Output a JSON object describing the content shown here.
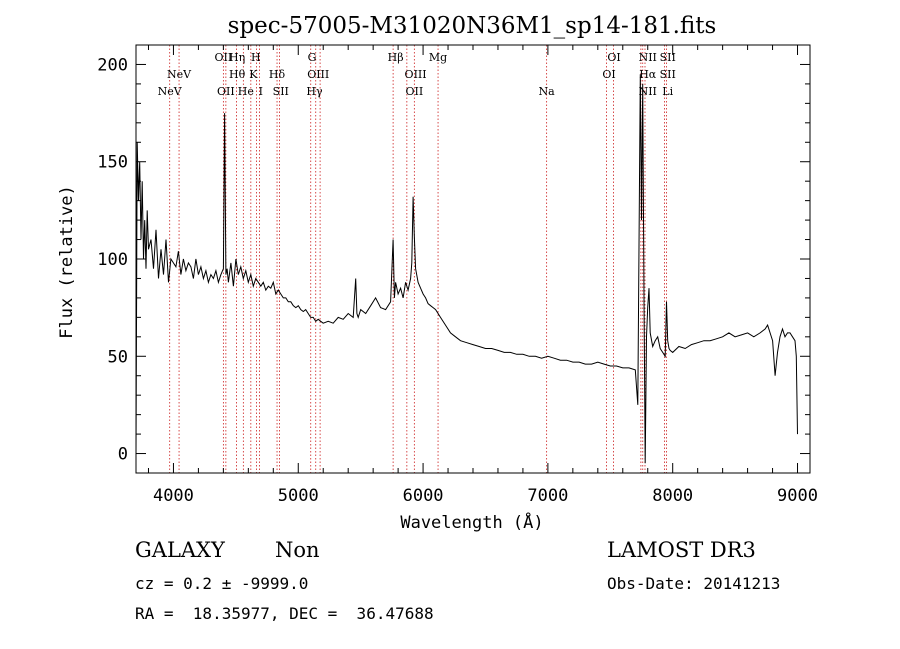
{
  "chart_data": {
    "type": "line",
    "title": "spec-57005-M31020N36M1_sp14-181.fits",
    "xlabel": "Wavelength (Å)",
    "ylabel": "Flux (relative)",
    "xlim": [
      3700,
      9100
    ],
    "ylim": [
      -10,
      210
    ],
    "xticks": [
      4000,
      5000,
      6000,
      7000,
      8000,
      9000
    ],
    "yticks": [
      0,
      50,
      100,
      150,
      200
    ],
    "grid": false,
    "series": [
      {
        "x": [
          3700,
          3710,
          3720,
          3730,
          3740,
          3750,
          3760,
          3770,
          3780,
          3790,
          3800,
          3820,
          3840,
          3860,
          3880,
          3900,
          3920,
          3940,
          3960,
          3980,
          4000,
          4020,
          4040,
          4060,
          4080,
          4100,
          4120,
          4140,
          4160,
          4180,
          4200,
          4220,
          4240,
          4260,
          4280,
          4300,
          4320,
          4340,
          4360,
          4380,
          4400,
          4410,
          4420,
          4430,
          4440,
          4460,
          4480,
          4500,
          4520,
          4540,
          4560,
          4580,
          4600,
          4620,
          4640,
          4660,
          4680,
          4700,
          4720,
          4740,
          4760,
          4780,
          4800,
          4820,
          4840,
          4860,
          4880,
          4900,
          4920,
          4940,
          4960,
          4980,
          5000,
          5020,
          5040,
          5060,
          5080,
          5100,
          5120,
          5140,
          5160,
          5180,
          5200,
          5240,
          5280,
          5320,
          5360,
          5400,
          5440,
          5460,
          5470,
          5480,
          5500,
          5540,
          5580,
          5620,
          5660,
          5700,
          5740,
          5760,
          5770,
          5780,
          5800,
          5820,
          5840,
          5860,
          5880,
          5900,
          5910,
          5920,
          5930,
          5940,
          5960,
          5980,
          6000,
          6020,
          6040,
          6060,
          6080,
          6100,
          6140,
          6180,
          6220,
          6260,
          6300,
          6350,
          6400,
          6450,
          6500,
          6550,
          6600,
          6650,
          6700,
          6750,
          6800,
          6850,
          6900,
          6950,
          7000,
          7050,
          7100,
          7150,
          7200,
          7250,
          7300,
          7350,
          7400,
          7450,
          7500,
          7550,
          7600,
          7650,
          7700,
          7720,
          7740,
          7750,
          7760,
          7770,
          7780,
          7790,
          7800,
          7810,
          7820,
          7840,
          7860,
          7880,
          7900,
          7920,
          7940,
          7950,
          7960,
          7970,
          7980,
          8000,
          8050,
          8100,
          8150,
          8200,
          8250,
          8300,
          8350,
          8400,
          8450,
          8500,
          8550,
          8600,
          8650,
          8700,
          8740,
          8760,
          8780,
          8800,
          8820,
          8840,
          8860,
          8880,
          8900,
          8920,
          8940,
          8960,
          8980,
          8990,
          9000
        ],
        "y": [
          0,
          160,
          130,
          150,
          110,
          140,
          100,
          120,
          95,
          125,
          105,
          110,
          95,
          115,
          90,
          105,
          92,
          110,
          88,
          100,
          98,
          96,
          104,
          92,
          100,
          94,
          98,
          96,
          90,
          100,
          92,
          96,
          90,
          94,
          88,
          92,
          90,
          94,
          88,
          92,
          95,
          175,
          92,
          95,
          88,
          98,
          86,
          100,
          92,
          96,
          90,
          94,
          88,
          92,
          86,
          90,
          88,
          86,
          88,
          84,
          86,
          85,
          88,
          82,
          84,
          82,
          80,
          80,
          78,
          78,
          76,
          75,
          76,
          74,
          73,
          74,
          72,
          70,
          70,
          68,
          69,
          68,
          67,
          68,
          67,
          70,
          69,
          72,
          70,
          90,
          72,
          70,
          74,
          72,
          76,
          80,
          75,
          74,
          78,
          110,
          80,
          88,
          82,
          85,
          80,
          88,
          84,
          90,
          98,
          132,
          112,
          95,
          88,
          85,
          82,
          80,
          77,
          76,
          75,
          74,
          70,
          66,
          62,
          60,
          58,
          57,
          56,
          55,
          54,
          54,
          53,
          52,
          52,
          51,
          51,
          50,
          50,
          49,
          50,
          49,
          48,
          48,
          47,
          47,
          46,
          46,
          47,
          46,
          45,
          45,
          44,
          44,
          43,
          25,
          195,
          120,
          190,
          80,
          -5,
          60,
          75,
          85,
          62,
          55,
          58,
          60,
          54,
          52,
          50,
          78,
          58,
          54,
          53,
          52,
          55,
          54,
          56,
          57,
          58,
          58,
          59,
          60,
          62,
          60,
          61,
          62,
          60,
          62,
          64,
          66,
          62,
          58,
          40,
          52,
          60,
          64,
          60,
          62,
          62,
          60,
          58,
          50,
          10
        ]
      }
    ],
    "line_markers": [
      {
        "label": "NeV",
        "x": 3970,
        "row": 3
      },
      {
        "label": "NeV",
        "x": 4045,
        "row": 2
      },
      {
        "label": "OII",
        "x": 4400,
        "row": 1
      },
      {
        "label": "OII",
        "x": 4420,
        "row": 3
      },
      {
        "label": "Hη",
        "x": 4510,
        "row": 1
      },
      {
        "label": "Hθ",
        "x": 4510,
        "row": 2
      },
      {
        "label": "He",
        "x": 4580,
        "row": 3
      },
      {
        "label": "H",
        "x": 4660,
        "row": 1
      },
      {
        "label": "K",
        "x": 4640,
        "row": 2
      },
      {
        "label": "I",
        "x": 4700,
        "row": 3
      },
      {
        "label": "Hδ",
        "x": 4830,
        "row": 2
      },
      {
        "label": "SII",
        "x": 4860,
        "row": 3
      },
      {
        "label": "G",
        "x": 5110,
        "row": 1
      },
      {
        "label": "OIII",
        "x": 5160,
        "row": 2
      },
      {
        "label": "Hγ",
        "x": 5130,
        "row": 3
      },
      {
        "label": "Hβ",
        "x": 5780,
        "row": 1
      },
      {
        "label": "OIII",
        "x": 5940,
        "row": 2
      },
      {
        "label": "OII",
        "x": 5930,
        "row": 3
      },
      {
        "label": "Mg",
        "x": 6120,
        "row": 1
      },
      {
        "label": "Na",
        "x": 6990,
        "row": 3
      },
      {
        "label": "OI",
        "x": 7530,
        "row": 1
      },
      {
        "label": "OI",
        "x": 7490,
        "row": 2
      },
      {
        "label": "NII",
        "x": 7800,
        "row": 1
      },
      {
        "label": "Hα",
        "x": 7800,
        "row": 2
      },
      {
        "label": "NII",
        "x": 7800,
        "row": 3
      },
      {
        "label": "SII",
        "x": 7960,
        "row": 1
      },
      {
        "label": "SII",
        "x": 7960,
        "row": 2
      },
      {
        "label": "Li",
        "x": 7960,
        "row": 3
      }
    ],
    "marker_lines_x": [
      3970,
      4045,
      4400,
      4420,
      4505,
      4560,
      4620,
      4665,
      4690,
      4830,
      4850,
      5100,
      5140,
      5175,
      5760,
      5870,
      5930,
      6120,
      6990,
      7470,
      7525,
      7745,
      7760,
      7778,
      7935,
      7950
    ]
  },
  "footer": {
    "object_type": "GALAXY",
    "subclass": "Non",
    "survey": "LAMOST DR3",
    "cz": "cz = 0.2 ± -9999.0",
    "obs_date": "Obs-Date: 20141213",
    "coords": "RA =  18.35977, DEC =  36.47688"
  }
}
